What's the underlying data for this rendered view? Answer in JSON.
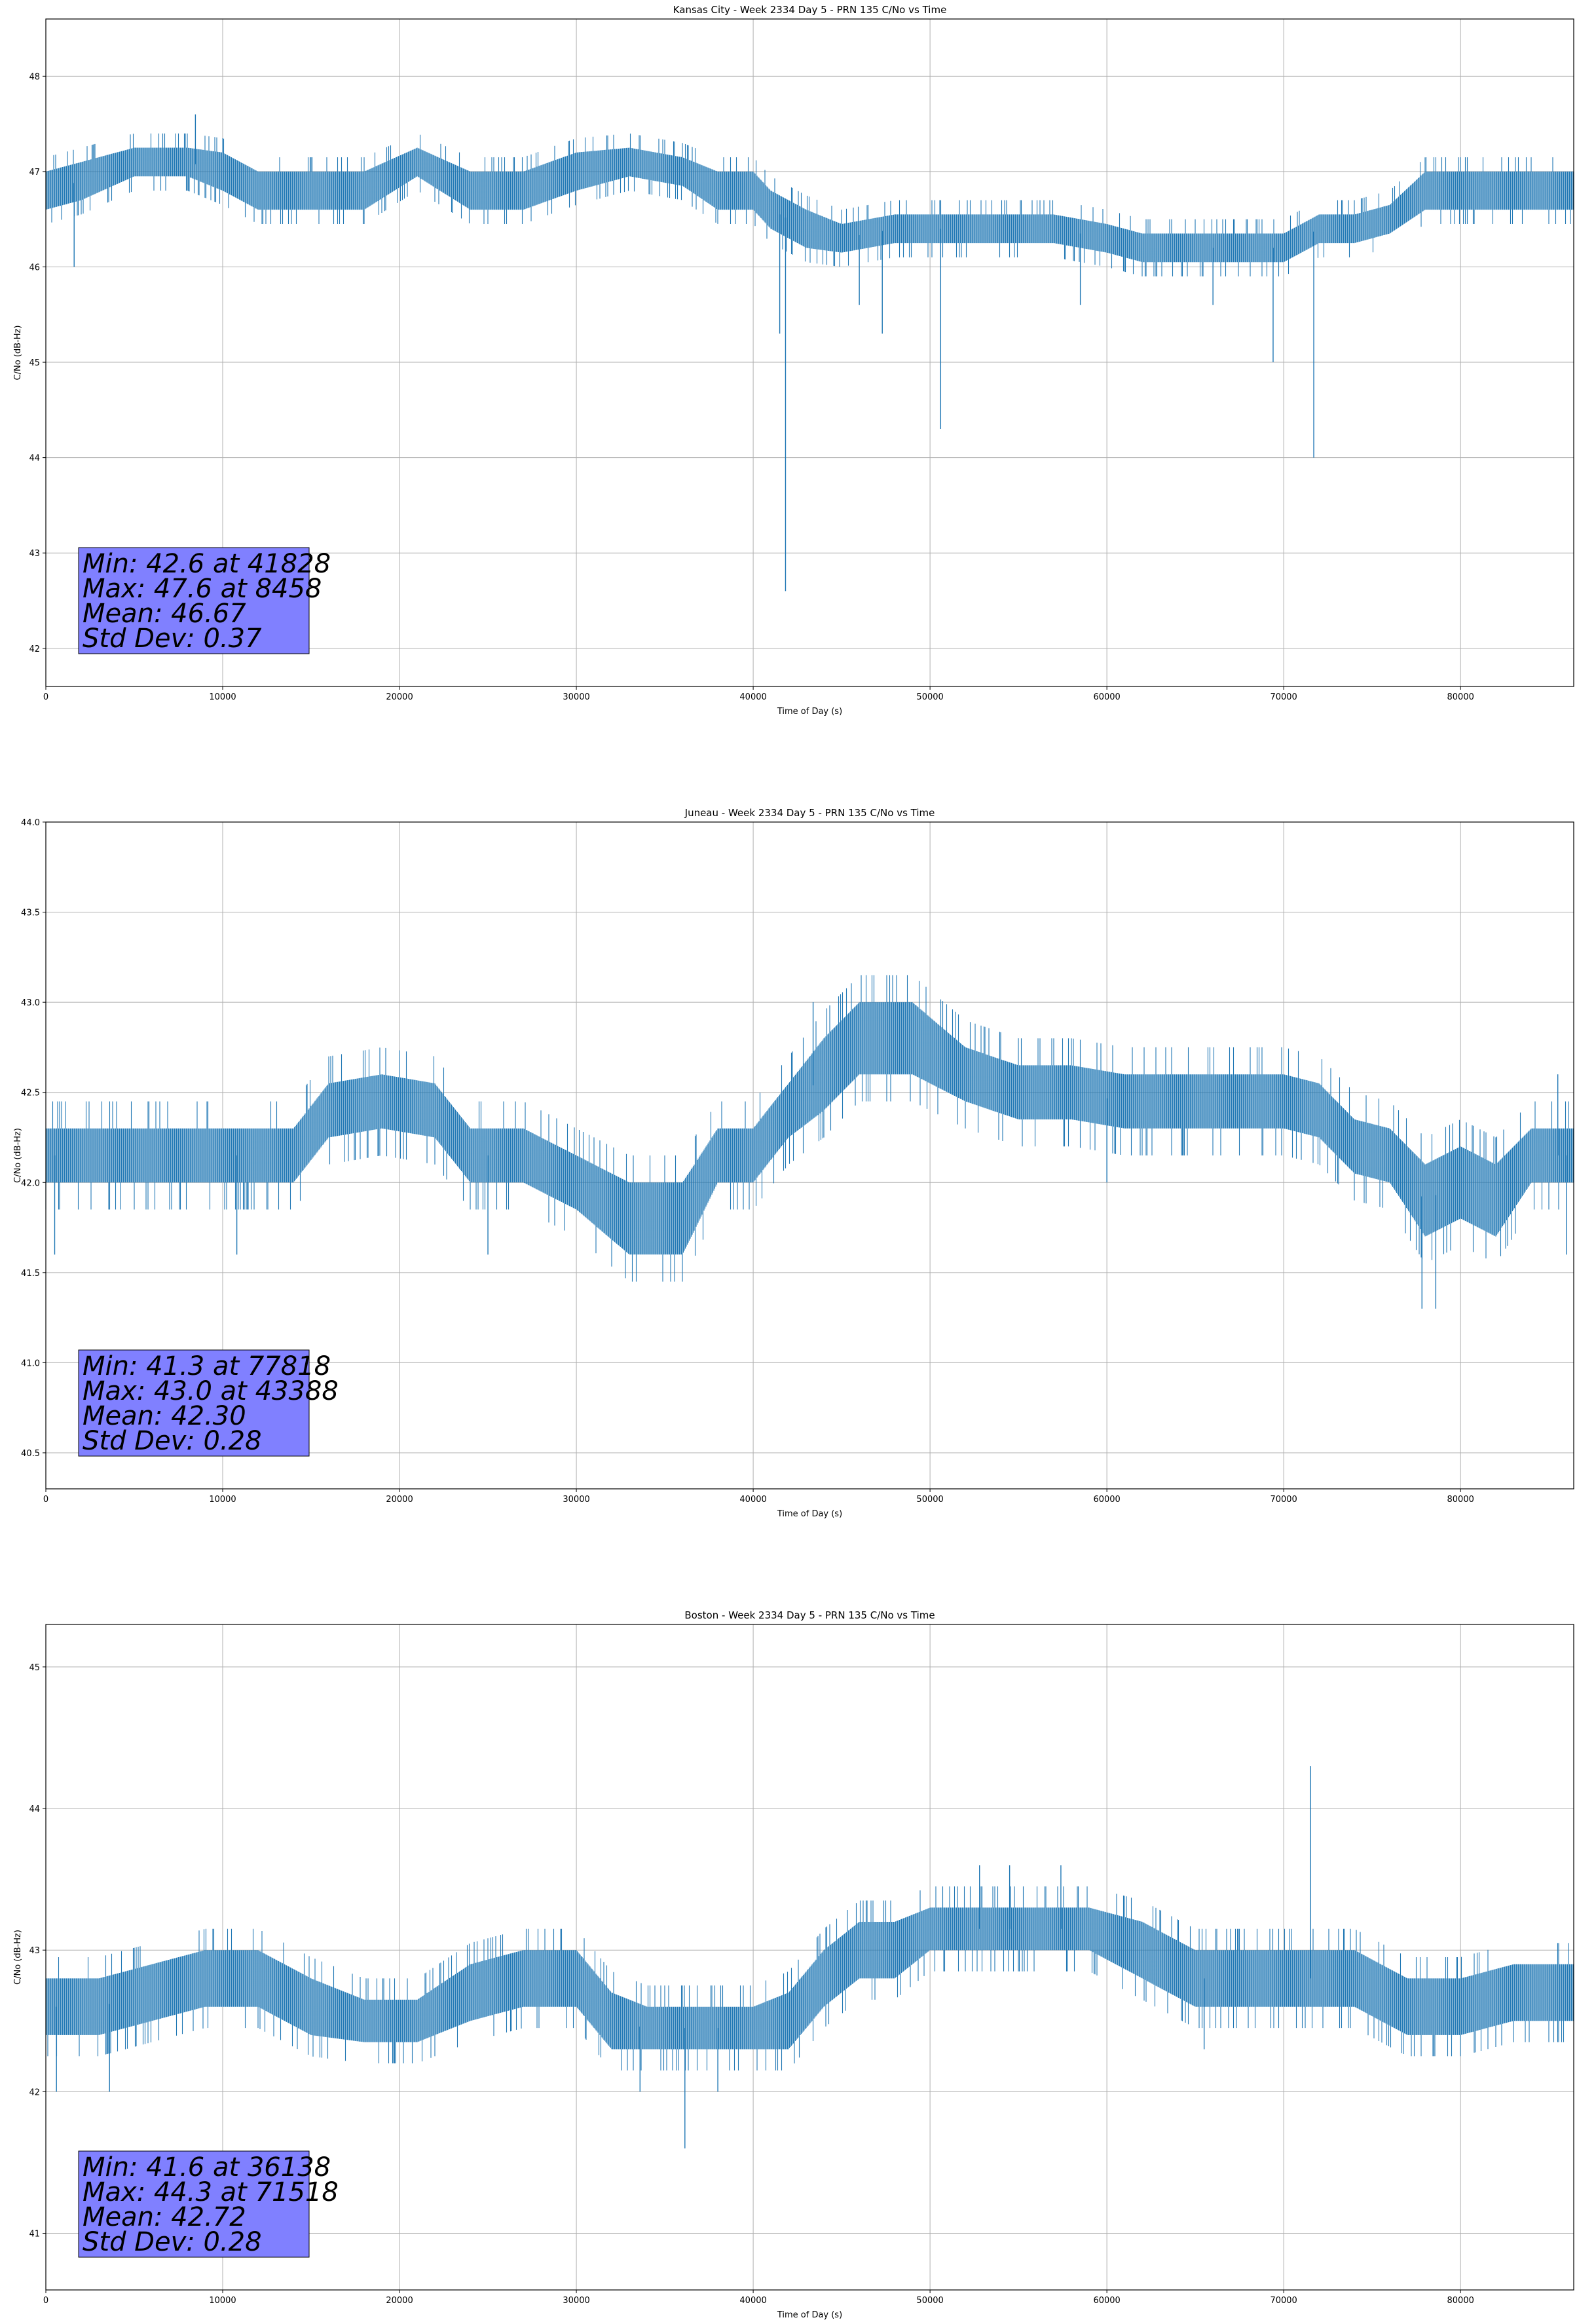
{
  "chart_data": [
    {
      "type": "line",
      "title": "Kansas City - Week 2334 Day 5 - PRN 135 C/No vs Time",
      "xlabel": "Time of Day (s)",
      "ylabel": "C/No (dB-Hz)",
      "xlim": [
        0,
        86400
      ],
      "ylim": [
        41.6,
        48.6
      ],
      "xticks": [
        0,
        10000,
        20000,
        30000,
        40000,
        50000,
        60000,
        70000,
        80000
      ],
      "yticks": [
        42,
        43,
        44,
        45,
        46,
        47,
        48
      ],
      "grid": true,
      "color": "#1f77b4",
      "series": [
        {
          "x": [
            0,
            2000,
            5000,
            8000,
            10000,
            12000,
            15000,
            18000,
            21000,
            24000,
            27000,
            30000,
            33000,
            36000,
            38000,
            39000,
            40000,
            41000,
            42000,
            43000,
            45000,
            48000,
            51000,
            54000,
            57000,
            60000,
            62000,
            64000,
            66000,
            68000,
            70000,
            71000,
            72000,
            74000,
            76000,
            78000,
            80000,
            82000,
            84000,
            86400
          ],
          "y": [
            46.8,
            46.9,
            47.1,
            47.1,
            47.0,
            46.8,
            46.8,
            46.8,
            47.1,
            46.8,
            46.8,
            47.0,
            47.1,
            47.0,
            46.8,
            46.8,
            46.8,
            46.6,
            46.5,
            46.4,
            46.3,
            46.4,
            46.4,
            46.4,
            46.4,
            46.3,
            46.2,
            46.2,
            46.2,
            46.2,
            46.2,
            46.3,
            46.4,
            46.4,
            46.5,
            46.8,
            46.8,
            46.8,
            46.8,
            46.8
          ],
          "band": [
            0.4,
            0.4,
            0.3,
            0.3,
            0.4,
            0.4,
            0.4,
            0.4,
            0.3,
            0.4,
            0.4,
            0.4,
            0.3,
            0.3,
            0.4,
            0.4,
            0.4,
            0.4,
            0.4,
            0.4,
            0.3,
            0.3,
            0.3,
            0.3,
            0.3,
            0.3,
            0.3,
            0.3,
            0.3,
            0.3,
            0.3,
            0.3,
            0.3,
            0.3,
            0.3,
            0.4,
            0.4,
            0.4,
            0.4,
            0.4
          ],
          "dips": [
            [
              1600,
              46.0
            ],
            [
              41828,
              42.6
            ],
            [
              41500,
              45.3
            ],
            [
              46000,
              45.6
            ],
            [
              47300,
              45.3
            ],
            [
              50600,
              44.3
            ],
            [
              58500,
              45.6
            ],
            [
              69400,
              45.0
            ],
            [
              71700,
              44.0
            ],
            [
              66000,
              45.6
            ]
          ],
          "spikes": [
            [
              8458,
              47.6
            ]
          ]
        }
      ],
      "annotation": {
        "lines": [
          "Min: 42.6 at 41828",
          "Max: 47.6 at 8458",
          "Mean: 46.67",
          "Std Dev: 0.37"
        ],
        "box_color": "#8080ff"
      }
    },
    {
      "type": "line",
      "title": "Juneau - Week 2334 Day 5 - PRN 135 C/No vs Time",
      "xlabel": "Time of Day (s)",
      "ylabel": "C/No (dB-Hz)",
      "xlim": [
        0,
        86400
      ],
      "ylim": [
        40.3,
        44.0
      ],
      "xticks": [
        0,
        10000,
        20000,
        30000,
        40000,
        50000,
        60000,
        70000,
        80000
      ],
      "yticks": [
        40.5,
        41.0,
        41.5,
        42.0,
        42.5,
        43.0,
        43.5,
        44.0
      ],
      "ytick_decimals": 1,
      "grid": true,
      "color": "#1f77b4",
      "series": [
        {
          "x": [
            0,
            3000,
            6000,
            9000,
            12000,
            14000,
            16000,
            19000,
            22000,
            24000,
            27000,
            30000,
            33000,
            36000,
            38000,
            40000,
            42000,
            44000,
            46000,
            49000,
            52000,
            55000,
            58000,
            61000,
            64000,
            67000,
            70000,
            72000,
            74000,
            76000,
            78000,
            80000,
            82000,
            84000,
            86400
          ],
          "y": [
            42.15,
            42.15,
            42.15,
            42.15,
            42.15,
            42.15,
            42.4,
            42.45,
            42.4,
            42.15,
            42.15,
            42.0,
            41.8,
            41.8,
            42.15,
            42.15,
            42.4,
            42.6,
            42.8,
            42.8,
            42.6,
            42.5,
            42.5,
            42.45,
            42.45,
            42.45,
            42.45,
            42.4,
            42.2,
            42.15,
            41.9,
            42.0,
            41.9,
            42.15,
            42.15
          ],
          "band": [
            0.3,
            0.3,
            0.3,
            0.3,
            0.3,
            0.3,
            0.3,
            0.3,
            0.3,
            0.3,
            0.3,
            0.3,
            0.4,
            0.4,
            0.3,
            0.3,
            0.3,
            0.4,
            0.4,
            0.4,
            0.3,
            0.3,
            0.3,
            0.3,
            0.3,
            0.3,
            0.3,
            0.3,
            0.3,
            0.3,
            0.4,
            0.4,
            0.4,
            0.3,
            0.3
          ],
          "dips": [
            [
              500,
              41.6
            ],
            [
              10800,
              41.6
            ],
            [
              25000,
              41.6
            ],
            [
              60000,
              42.0
            ],
            [
              77818,
              41.3
            ],
            [
              78600,
              41.3
            ],
            [
              86000,
              41.6
            ]
          ],
          "spikes": [
            [
              43388,
              43.0
            ],
            [
              85500,
              42.6
            ]
          ]
        }
      ],
      "annotation": {
        "lines": [
          "Min: 41.3 at 77818",
          "Max: 43.0 at 43388",
          "Mean: 42.30",
          "Std Dev: 0.28"
        ],
        "box_color": "#8080ff"
      }
    },
    {
      "type": "line",
      "title": "Boston - Week 2334 Day 5 - PRN 135 C/No vs Time",
      "xlabel": "Time of Day (s)",
      "ylabel": "C/No (dB-Hz)",
      "xlim": [
        0,
        86400
      ],
      "ylim": [
        40.6,
        45.3
      ],
      "xticks": [
        0,
        10000,
        20000,
        30000,
        40000,
        50000,
        60000,
        70000,
        80000
      ],
      "yticks": [
        41,
        42,
        43,
        44,
        45
      ],
      "grid": true,
      "color": "#1f77b4",
      "series": [
        {
          "x": [
            0,
            3000,
            6000,
            9000,
            12000,
            15000,
            18000,
            21000,
            24000,
            27000,
            30000,
            32000,
            34000,
            36000,
            38000,
            40000,
            42000,
            44000,
            46000,
            48000,
            50000,
            53000,
            56000,
            59000,
            62000,
            65000,
            68000,
            71000,
            74000,
            77000,
            80000,
            83000,
            86400
          ],
          "y": [
            42.6,
            42.6,
            42.7,
            42.8,
            42.8,
            42.6,
            42.5,
            42.5,
            42.7,
            42.8,
            42.8,
            42.5,
            42.45,
            42.45,
            42.45,
            42.45,
            42.5,
            42.8,
            43.0,
            43.0,
            43.15,
            43.15,
            43.15,
            43.15,
            43.0,
            42.8,
            42.8,
            42.8,
            42.8,
            42.6,
            42.6,
            42.7,
            42.7
          ],
          "band": [
            0.4,
            0.4,
            0.4,
            0.4,
            0.4,
            0.4,
            0.3,
            0.3,
            0.4,
            0.4,
            0.4,
            0.4,
            0.3,
            0.3,
            0.3,
            0.3,
            0.4,
            0.4,
            0.4,
            0.4,
            0.3,
            0.3,
            0.3,
            0.3,
            0.4,
            0.4,
            0.4,
            0.4,
            0.4,
            0.4,
            0.4,
            0.4,
            0.4
          ],
          "dips": [
            [
              600,
              42.0
            ],
            [
              3600,
              42.0
            ],
            [
              33600,
              42.0
            ],
            [
              36138,
              41.6
            ],
            [
              38000,
              42.0
            ],
            [
              65500,
              42.3
            ]
          ],
          "spikes": [
            [
              52800,
              43.6
            ],
            [
              54500,
              43.6
            ],
            [
              57400,
              43.6
            ],
            [
              71518,
              44.3
            ]
          ]
        }
      ],
      "annotation": {
        "lines": [
          "Min: 41.6 at 36138",
          "Max: 44.3 at 71518",
          "Mean: 42.72",
          "Std Dev: 0.28"
        ],
        "box_color": "#8080ff"
      }
    }
  ]
}
